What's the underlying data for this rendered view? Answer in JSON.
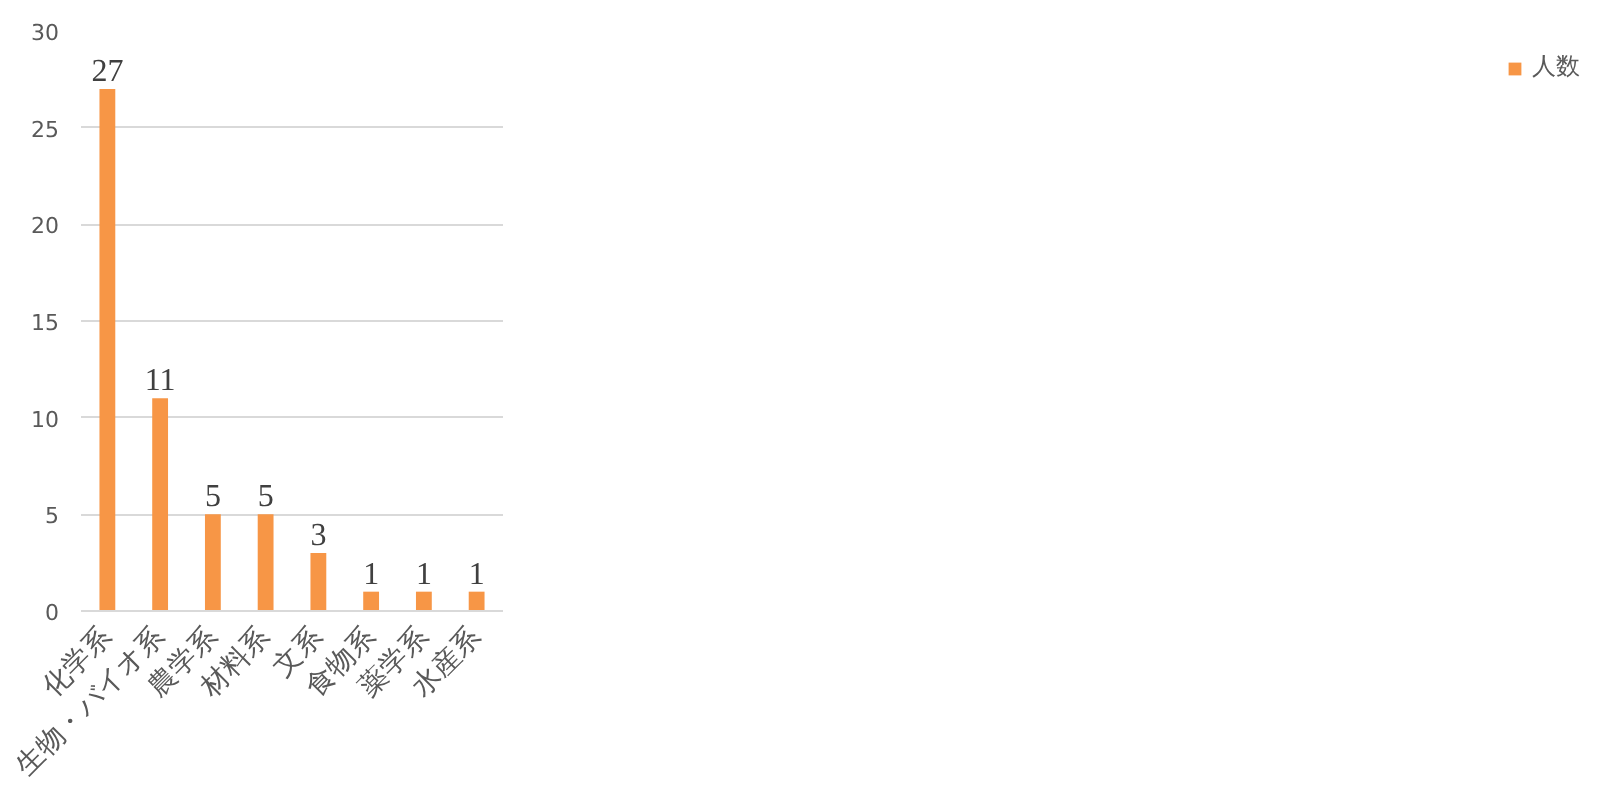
{
  "chart_data": {
    "type": "bar",
    "categories": [
      "化学系",
      "生物・バイオ系",
      "農学系",
      "材料系",
      "文系",
      "食物系",
      "薬学系",
      "水産系"
    ],
    "series": [
      {
        "name": "人数",
        "color": "#f79646",
        "values": [
          27,
          11,
          5,
          5,
          3,
          1,
          1,
          1
        ]
      }
    ],
    "ylim": [
      0,
      30
    ],
    "yticks": [
      0,
      5,
      10,
      15,
      20,
      25,
      30
    ],
    "grid": "y",
    "legend": "right",
    "data_labels": true
  }
}
